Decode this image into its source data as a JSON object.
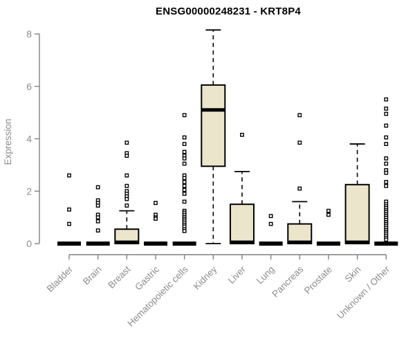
{
  "chart_data": {
    "type": "boxplot",
    "title": "ENSG00000248231 - KRT8P4",
    "ylabel": "Expression",
    "xlabel": "",
    "ylim": [
      0,
      8.2
    ],
    "yticks": [
      0,
      2,
      4,
      6,
      8
    ],
    "grid": false,
    "legend": "none",
    "categories": [
      "Bladder",
      "Brain",
      "Breast",
      "Gastric",
      "Hematopoietic cells",
      "Kidney",
      "Liver",
      "Lung",
      "Pancreas",
      "Prostate",
      "Skin",
      "Unknown / Other"
    ],
    "boxes": [
      {
        "category": "Bladder",
        "low": 0,
        "q1": 0,
        "median": 0,
        "q3": 0,
        "high": 0,
        "outliers": [
          2.6,
          1.3,
          0.75
        ]
      },
      {
        "category": "Brain",
        "low": 0,
        "q1": 0,
        "median": 0,
        "q3": 0,
        "high": 0,
        "outliers": [
          2.15,
          1.65,
          1.55,
          1.45,
          1.1,
          1.0,
          0.85,
          0.5
        ]
      },
      {
        "category": "Breast",
        "low": 0,
        "q1": 0,
        "median": 0.05,
        "q3": 0.55,
        "high": 1.25,
        "outliers": [
          3.85,
          3.45,
          3.35,
          2.6,
          2.2,
          2.0,
          1.9,
          1.8,
          1.7,
          1.45
        ]
      },
      {
        "category": "Gastric",
        "low": 0,
        "q1": 0,
        "median": 0,
        "q3": 0,
        "high": 0,
        "outliers": [
          1.55,
          1.1,
          1.0,
          0.95
        ]
      },
      {
        "category": "Hematopoietic cells",
        "low": 0,
        "q1": 0,
        "median": 0,
        "q3": 0,
        "high": 0,
        "outliers": [
          4.9,
          4.05,
          3.8,
          3.5,
          3.35,
          3.25,
          3.05,
          2.6,
          2.5,
          2.35,
          2.2,
          2.05,
          1.9,
          1.6,
          1.25,
          1.18,
          1.1,
          1.02,
          0.95,
          0.88,
          0.8,
          0.72,
          0.65,
          0.55,
          0.48
        ]
      },
      {
        "category": "Kidney",
        "low": 0,
        "q1": 2.95,
        "median": 5.1,
        "q3": 6.05,
        "high": 8.15,
        "outliers": []
      },
      {
        "category": "Liver",
        "low": 0,
        "q1": 0,
        "median": 0.05,
        "q3": 1.5,
        "high": 2.75,
        "outliers": [
          4.15
        ]
      },
      {
        "category": "Lung",
        "low": 0,
        "q1": 0,
        "median": 0,
        "q3": 0,
        "high": 0,
        "outliers": [
          1.05,
          0.75
        ]
      },
      {
        "category": "Pancreas",
        "low": 0,
        "q1": 0,
        "median": 0.05,
        "q3": 0.75,
        "high": 1.6,
        "outliers": [
          4.9,
          3.85,
          2.1
        ]
      },
      {
        "category": "Prostate",
        "low": 0,
        "q1": 0,
        "median": 0,
        "q3": 0,
        "high": 0,
        "outliers": [
          1.25,
          1.1
        ]
      },
      {
        "category": "Skin",
        "low": 0,
        "q1": 0,
        "median": 0.05,
        "q3": 2.25,
        "high": 3.8,
        "outliers": []
      },
      {
        "category": "Unknown / Other",
        "low": 0,
        "q1": 0,
        "median": 0,
        "q3": 0,
        "high": 0,
        "outliers": [
          5.5,
          5.15,
          4.95,
          4.5,
          4.05,
          3.8,
          3.25,
          3.05,
          2.8,
          2.7,
          2.35,
          2.2,
          1.6,
          1.5,
          1.42,
          1.35,
          1.27,
          1.2,
          1.12,
          1.05,
          0.98,
          0.9,
          0.82,
          0.75,
          0.68,
          0.6,
          0.52,
          0.45,
          0.38,
          0.3,
          0.22,
          0.15
        ]
      }
    ],
    "colors": {
      "box_fill": "#ebe5cc",
      "box_border": "#000000",
      "median": "#000000",
      "whisker": "#000000",
      "outlier": "#000000",
      "axis_line": "#7f7f7f",
      "axis_text": "#8c8c8c",
      "title": "#000000",
      "background": "#ffffff"
    }
  }
}
